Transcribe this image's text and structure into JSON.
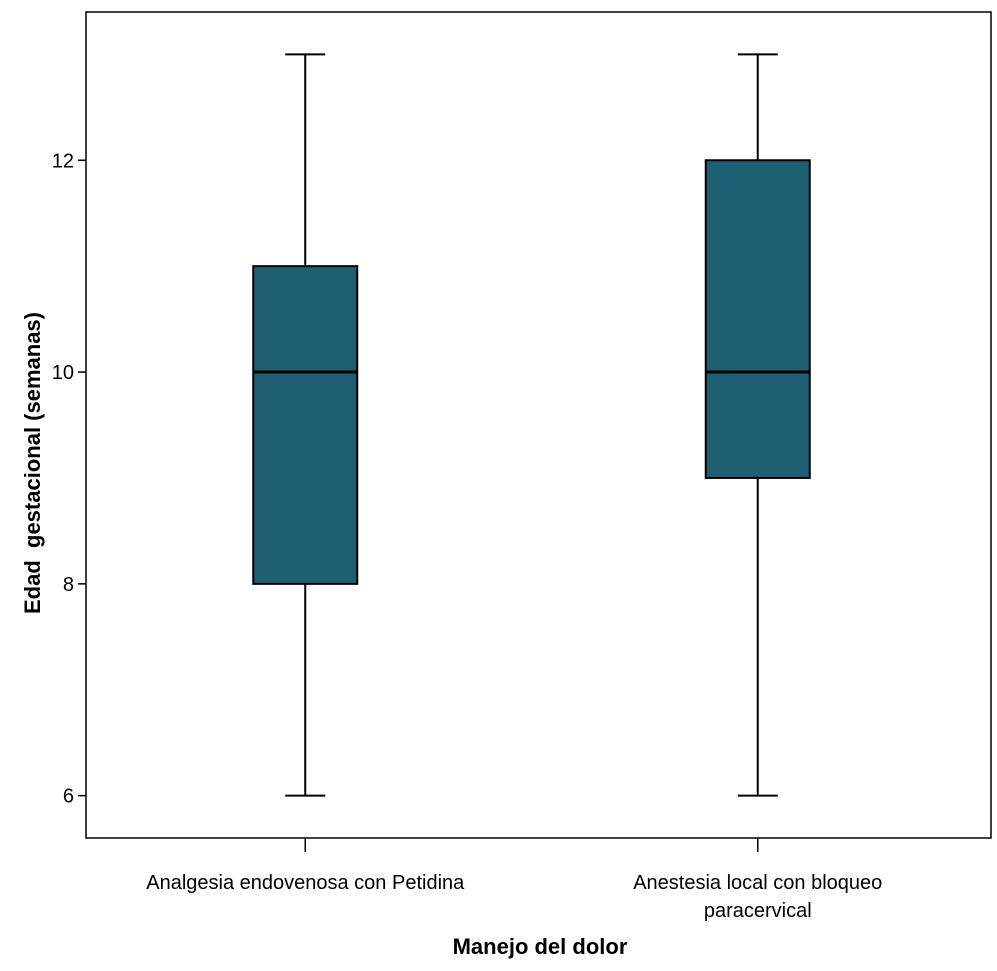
{
  "chart_data": {
    "type": "box",
    "xlabel": "Manejo del dolor",
    "ylabel": "Edad  gestacional (semanas)",
    "ylim": [
      5.6,
      13.4
    ],
    "yticks": [
      6,
      8,
      10,
      12
    ],
    "grid": false,
    "colors": {
      "box_fill": "#1e5f74",
      "stroke": "#000000"
    },
    "categories": [
      {
        "label_lines": [
          "Analgesia endovenosa con Petidina"
        ],
        "min": 6,
        "q1": 8,
        "median": 10,
        "q3": 11,
        "max": 13
      },
      {
        "label_lines": [
          "Anestesia local con bloqueo",
          "paracervical"
        ],
        "min": 6,
        "q1": 9,
        "median": 10,
        "q3": 12,
        "max": 13
      }
    ]
  }
}
